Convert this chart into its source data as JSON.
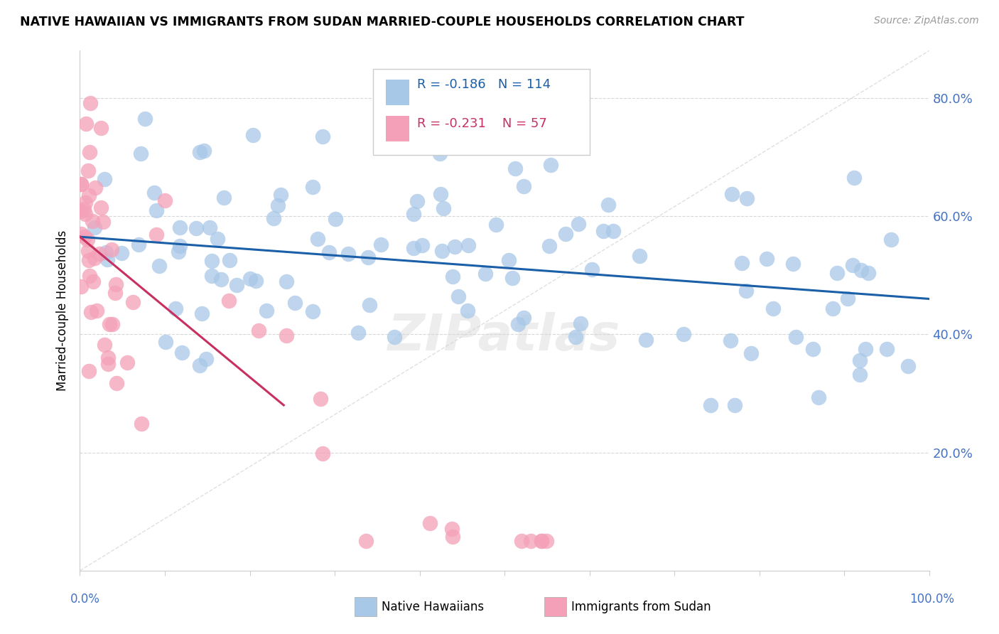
{
  "title": "NATIVE HAWAIIAN VS IMMIGRANTS FROM SUDAN MARRIED-COUPLE HOUSEHOLDS CORRELATION CHART",
  "source": "Source: ZipAtlas.com",
  "ylabel": "Married-couple Households",
  "legend_label1": "Native Hawaiians",
  "legend_label2": "Immigrants from Sudan",
  "R1": -0.186,
  "N1": 114,
  "R2": -0.231,
  "N2": 57,
  "color1": "#a8c8e8",
  "color2": "#f4a0b8",
  "line_color1": "#1a5fa8",
  "line_color2": "#c83060",
  "diag_color": "#d8d8d8",
  "ytick_labels": [
    "20.0%",
    "40.0%",
    "60.0%",
    "80.0%"
  ],
  "ytick_color": "#4472c4",
  "xtick_color": "#4472c4",
  "xlim": [
    0.0,
    1.0
  ],
  "ylim": [
    0.0,
    0.88
  ],
  "blue_line_x0": 0.0,
  "blue_line_y0": 0.565,
  "blue_line_x1": 1.0,
  "blue_line_y1": 0.46,
  "pink_line_x0": 0.0,
  "pink_line_y0": 0.565,
  "pink_line_x1": 0.24,
  "pink_line_y1": 0.28
}
